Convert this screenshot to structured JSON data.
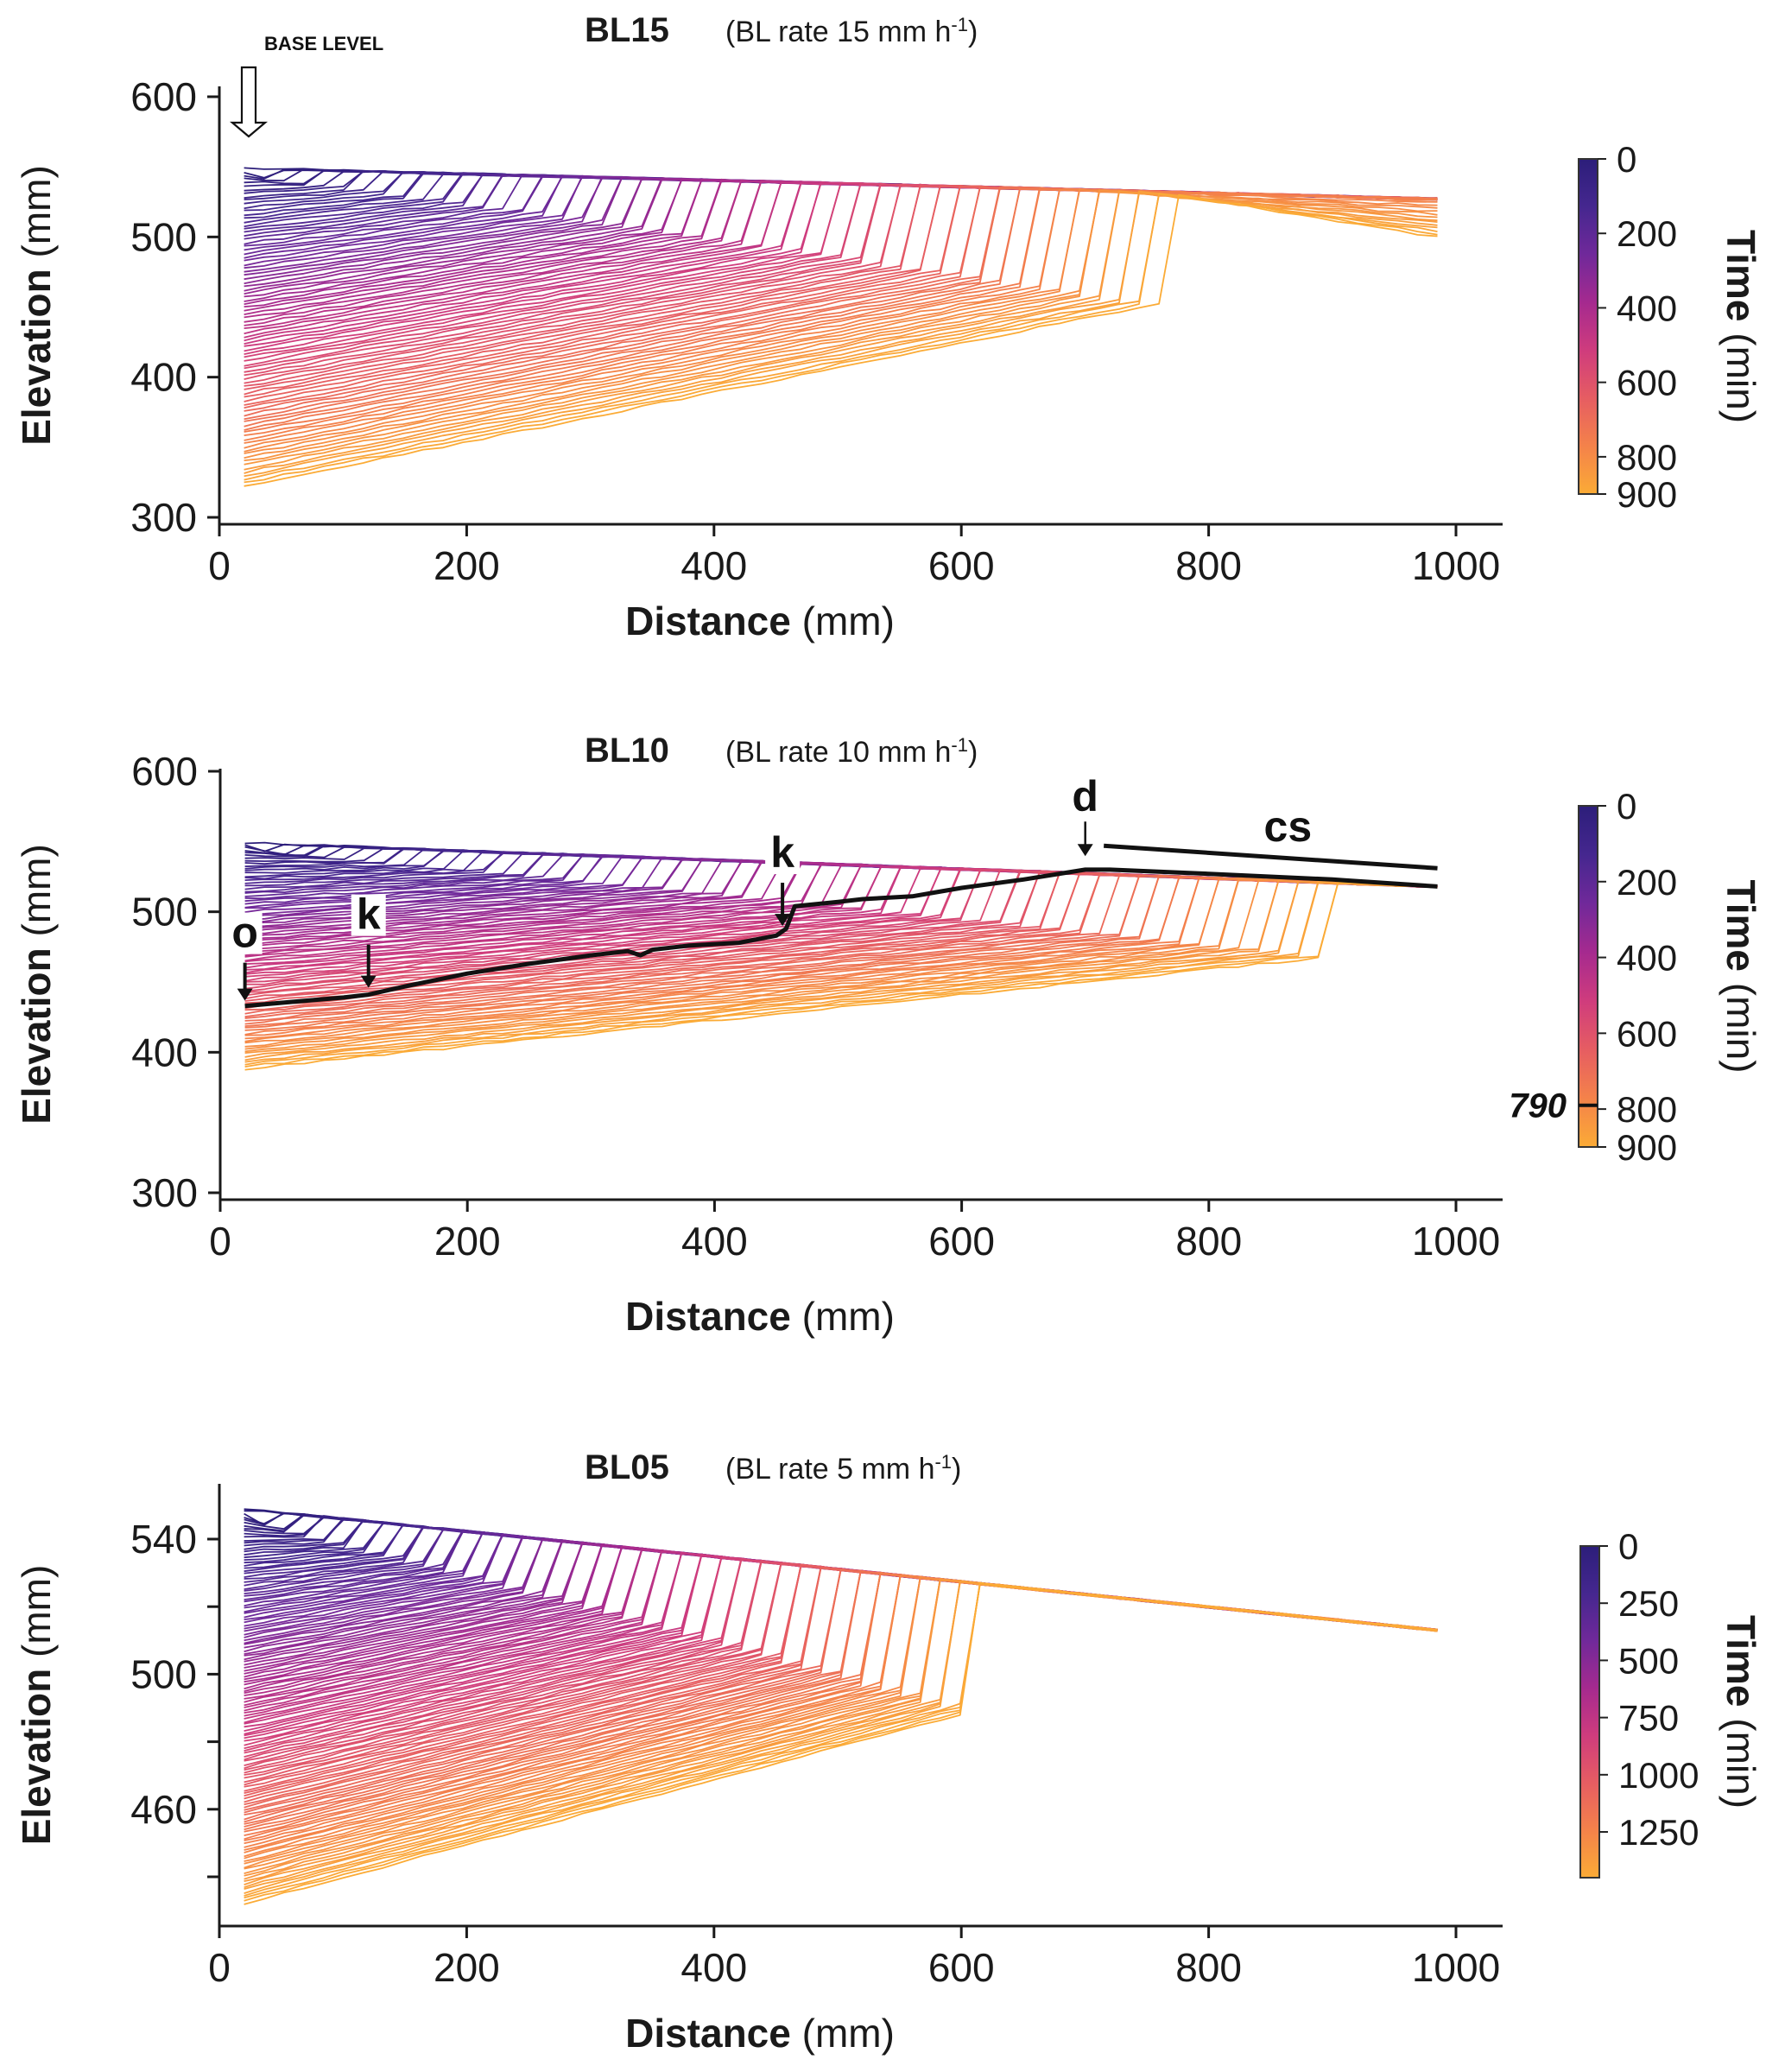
{
  "figure": {
    "base_level_label": "BASE LEVEL",
    "colormap": [
      "#2c1e7a",
      "#45278f",
      "#70299a",
      "#a52a8f",
      "#cf3c7d",
      "#e65d62",
      "#f4824a",
      "#fbab36"
    ]
  },
  "chart_data": [
    {
      "id": "BL15",
      "type": "line",
      "title": "BL15",
      "subtitle": "(BL rate 15 mm h",
      "subtitle_sup": "-1",
      "subtitle_close": ")",
      "xlabel_bold": "Distance",
      "xlabel_unit": "(mm)",
      "ylabel_bold": "Elevation",
      "ylabel_unit": "(mm)",
      "xlim": [
        0,
        1035
      ],
      "ylim": [
        295,
        600
      ],
      "xticks": [
        0,
        200,
        400,
        600,
        800,
        1000
      ],
      "xtick_labels": [
        "0",
        "200",
        "400",
        "600",
        "800",
        "1000"
      ],
      "yticks": [
        300,
        400,
        500,
        600
      ],
      "ytick_labels": [
        "300",
        "400",
        "500",
        "600"
      ],
      "colorbar": {
        "label_bold": "Time",
        "label_unit": "(min)",
        "range": [
          0,
          900
        ],
        "ticks": [
          0,
          200,
          400,
          600,
          800,
          900
        ],
        "tick_labels": [
          "0",
          "200",
          "400",
          "600",
          "800",
          "900"
        ]
      },
      "series_summary": {
        "n_profiles": 90,
        "x_start": 20,
        "x_end": 985,
        "initial_profile": {
          "start_elev": 549,
          "end_elev": 527
        },
        "final_profile": {
          "start_elev": 322,
          "end_elev": 500
        },
        "knickpoint_retreat_end_x": 760
      }
    },
    {
      "id": "BL10",
      "type": "line",
      "title": "BL10",
      "subtitle": "(BL rate 10 mm h",
      "subtitle_sup": "-1",
      "subtitle_close": ")",
      "xlabel_bold": "Distance",
      "xlabel_unit": "(mm)",
      "ylabel_bold": "Elevation",
      "ylabel_unit": "(mm)",
      "xlim": [
        0,
        1035
      ],
      "ylim": [
        295,
        600
      ],
      "xticks": [
        0,
        200,
        400,
        600,
        800,
        1000
      ],
      "xtick_labels": [
        "0",
        "200",
        "400",
        "600",
        "800",
        "1000"
      ],
      "yticks": [
        300,
        400,
        500,
        600
      ],
      "ytick_labels": [
        "300",
        "400",
        "500",
        "600"
      ],
      "colorbar": {
        "label_bold": "Time",
        "label_unit": "(min)",
        "range": [
          0,
          900
        ],
        "ticks": [
          0,
          200,
          400,
          600,
          800,
          900
        ],
        "tick_labels": [
          "0",
          "200",
          "400",
          "600",
          "800",
          "900"
        ],
        "highlight": {
          "value": 790,
          "label": "790"
        }
      },
      "series_summary": {
        "n_profiles": 90,
        "x_start": 20,
        "x_end": 985,
        "initial_profile": {
          "start_elev": 549,
          "end_elev": 518
        },
        "final_profile": {
          "start_elev": 388,
          "end_elev": 518
        }
      },
      "highlighted_profile": {
        "time": 790,
        "x": [
          20,
          60,
          100,
          120,
          150,
          200,
          250,
          300,
          330,
          340,
          350,
          380,
          420,
          450,
          458,
          465,
          500,
          520,
          560,
          580,
          600,
          650,
          700,
          720,
          800,
          900,
          985
        ],
        "y": [
          433,
          436,
          439,
          441,
          447,
          456,
          463,
          469,
          472,
          469,
          473,
          476,
          478,
          483,
          488,
          504,
          507,
          509,
          511,
          514,
          517,
          523,
          530,
          530,
          527,
          523,
          518
        ]
      },
      "cs_line": {
        "x": [
          715,
          985
        ],
        "y": [
          547,
          531
        ]
      },
      "annotations": [
        {
          "label": "o",
          "x": 20,
          "y": 433
        },
        {
          "label": "k",
          "x": 120,
          "y": 441
        },
        {
          "label": "k",
          "x": 455,
          "y": 485
        },
        {
          "label": "d",
          "x": 700,
          "y": 531
        },
        {
          "label": "cs",
          "x": 850,
          "y": 555
        }
      ]
    },
    {
      "id": "BL05",
      "type": "line",
      "title": "BL05",
      "subtitle": "(BL rate 5 mm h",
      "subtitle_sup": "-1",
      "subtitle_close": ")",
      "xlabel_bold": "Distance",
      "xlabel_unit": "(mm)",
      "ylabel_bold": "Elevation",
      "ylabel_unit": "(mm)",
      "xlim": [
        0,
        1035
      ],
      "ylim": [
        420,
        556
      ],
      "xticks": [
        0,
        200,
        400,
        600,
        800,
        1000
      ],
      "xtick_labels": [
        "0",
        "200",
        "400",
        "600",
        "800",
        "1000"
      ],
      "yticks": [
        440,
        460,
        480,
        500,
        520,
        540
      ],
      "ytick_labels": [
        "",
        "460",
        "",
        "500",
        "",
        "540"
      ],
      "colorbar": {
        "label_bold": "Time",
        "label_unit": "(min)",
        "range": [
          0,
          1450
        ],
        "ticks": [
          0,
          250,
          500,
          750,
          1000,
          1250
        ],
        "tick_labels": [
          "0",
          "250",
          "500",
          "750",
          "1000",
          "1250"
        ]
      },
      "series_summary": {
        "n_profiles": 140,
        "x_start": 20,
        "x_end": 985,
        "initial_profile": {
          "start_elev": 549,
          "end_elev": 513
        },
        "final_profile": {
          "start_elev": 432,
          "end_elev": 513
        },
        "knickpoint_retreat_end_x": 615
      }
    }
  ]
}
